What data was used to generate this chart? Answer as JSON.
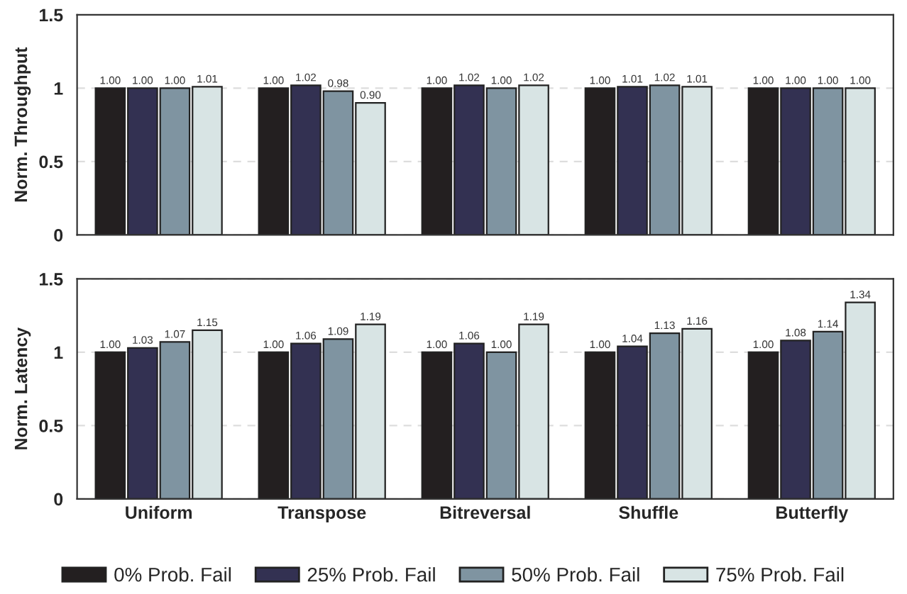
{
  "chart_data": [
    {
      "type": "bar",
      "ylabel": "Norm. Throughput",
      "categories": [
        null,
        null,
        null,
        null,
        null
      ],
      "ylim": [
        0,
        1.5
      ],
      "yticks": [
        0,
        0.5,
        1,
        1.5
      ],
      "grid": "y",
      "data_labels": true,
      "tick_labels": "y",
      "series": [
        {
          "color": "#231f20",
          "values": [
            1.0,
            1.0,
            1.0,
            1.0,
            1.0
          ],
          "value_labels": [
            "1.00",
            "1.00",
            "1.00",
            "1.00",
            "1.00"
          ]
        },
        {
          "color": "#333152",
          "values": [
            1.0,
            1.02,
            1.02,
            1.01,
            1.0
          ],
          "value_labels": [
            "1.00",
            "1.02",
            "1.02",
            "1.01",
            "1.00"
          ]
        },
        {
          "color": "#7f94a1",
          "values": [
            1.0,
            0.98,
            1.0,
            1.02,
            1.0
          ],
          "value_labels": [
            "1.00",
            "0.98",
            "1.00",
            "1.02",
            "1.00"
          ]
        },
        {
          "color": "#d8e4e4",
          "values": [
            1.01,
            0.9,
            1.02,
            1.01,
            1.0
          ],
          "value_labels": [
            "1.01",
            "0.90",
            "1.02",
            "1.01",
            "1.00"
          ]
        }
      ]
    },
    {
      "type": "bar",
      "ylabel": "Norm. Latency",
      "categories": [
        "Uniform",
        "Transpose",
        "Bitreversal",
        "Shuffle",
        "Butterfly"
      ],
      "ylim": [
        0,
        1.5
      ],
      "yticks": [
        0,
        0.5,
        1,
        1.5
      ],
      "grid": "y",
      "data_labels": true,
      "legend": "bottom",
      "series": [
        {
          "name": "0% Prob. Fail",
          "color": "#231f20",
          "values": [
            1.0,
            1.0,
            1.0,
            1.0,
            1.0
          ],
          "value_labels": [
            "1.00",
            "1.00",
            "1.00",
            "1.00",
            "1.00"
          ]
        },
        {
          "name": "25% Prob. Fail",
          "color": "#333152",
          "values": [
            1.03,
            1.06,
            1.06,
            1.04,
            1.08
          ],
          "value_labels": [
            "1.03",
            "1.06",
            "1.06",
            "1.04",
            "1.08"
          ]
        },
        {
          "name": "50% Prob. Fail",
          "color": "#7f94a1",
          "values": [
            1.07,
            1.09,
            1.0,
            1.13,
            1.14
          ],
          "value_labels": [
            "1.07",
            "1.09",
            "1.00",
            "1.13",
            "1.14"
          ]
        },
        {
          "name": "75% Prob. Fail",
          "color": "#d8e4e4",
          "values": [
            1.15,
            1.19,
            1.19,
            1.16,
            1.34
          ],
          "value_labels": [
            "1.15",
            "1.19",
            "1.19",
            "1.16",
            "1.34"
          ]
        }
      ]
    }
  ]
}
